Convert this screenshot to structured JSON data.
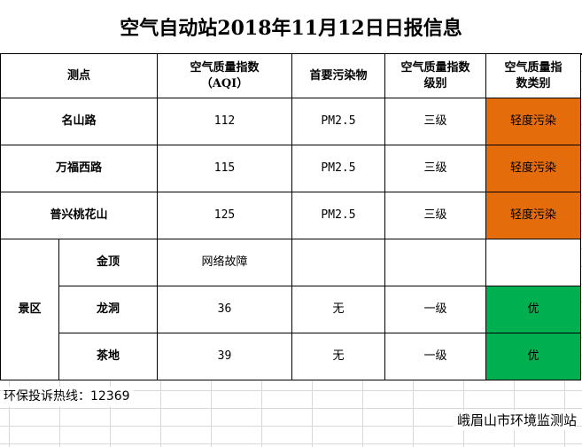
{
  "report": {
    "title": "空气自动站2018年11月12日日报信息",
    "headers": {
      "site": "测点",
      "aqi_line1": "空气质量指数",
      "aqi_line2": "（AQI）",
      "pollutant": "首要污染物",
      "level_line1": "空气质量指数",
      "level_line2": "级别",
      "category_line1": "空气质量指",
      "category_line2": "数类别"
    },
    "rows": [
      {
        "site": "名山路",
        "aqi": "112",
        "pollutant": "PM2.5",
        "level": "三级",
        "category": "轻度污染",
        "category_color": "#e46c0a"
      },
      {
        "site": "万福西路",
        "aqi": "115",
        "pollutant": "PM2.5",
        "level": "三级",
        "category": "轻度污染",
        "category_color": "#e46c0a"
      },
      {
        "site": "普兴桃花山",
        "aqi": "125",
        "pollutant": "PM2.5",
        "level": "三级",
        "category": "轻度污染",
        "category_color": "#e46c0a"
      }
    ],
    "scenic": {
      "zone_label": "景区",
      "rows": [
        {
          "site": "金顶",
          "aqi": "网络故障",
          "pollutant": "",
          "level": "",
          "category": ""
        },
        {
          "site": "龙洞",
          "aqi": "36",
          "pollutant": "无",
          "level": "一级",
          "category": "优",
          "category_color": "#00b050"
        },
        {
          "site": "茶地",
          "aqi": "39",
          "pollutant": "无",
          "level": "一级",
          "category": "优",
          "category_color": "#00b050"
        }
      ]
    },
    "hotline": "环保投诉热线：12369",
    "issuer": "峨眉山市环境监测站"
  }
}
